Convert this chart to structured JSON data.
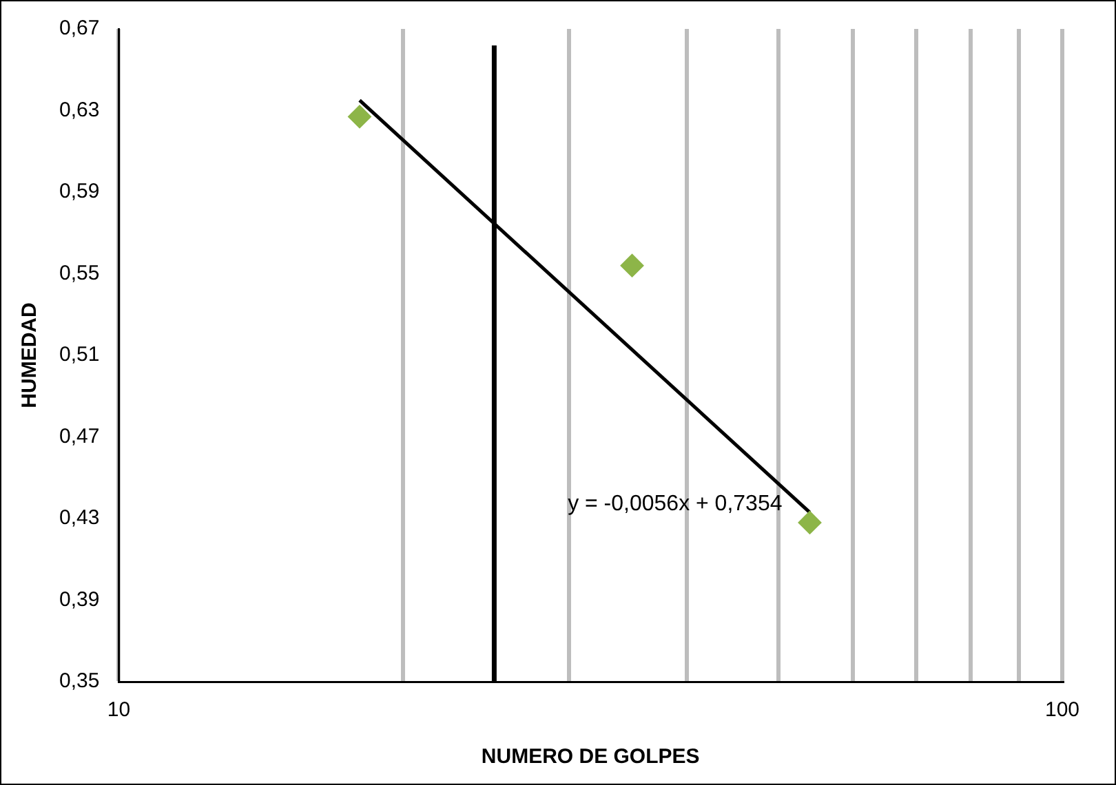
{
  "chart_data": {
    "type": "scatter",
    "xlabel": "NUMERO DE GOLPES",
    "ylabel": "HUMEDAD",
    "log": "x",
    "grid": "x",
    "legend": false,
    "marker": "diamond",
    "xlim": [
      10,
      100
    ],
    "xticks": [
      {
        "value": 10,
        "label": "10"
      },
      {
        "value": 20,
        "label": null
      },
      {
        "value": 30,
        "label": null
      },
      {
        "value": 40,
        "label": null
      },
      {
        "value": 50,
        "label": null
      },
      {
        "value": 60,
        "label": null
      },
      {
        "value": 70,
        "label": null
      },
      {
        "value": 80,
        "label": null
      },
      {
        "value": 90,
        "label": null
      },
      {
        "value": 100,
        "label": "100"
      }
    ],
    "ylim": [
      0.35,
      0.67
    ],
    "yticks": [
      {
        "value": 0.35,
        "label": "0,35"
      },
      {
        "value": 0.39,
        "label": "0,39"
      },
      {
        "value": 0.43,
        "label": "0,43"
      },
      {
        "value": 0.47,
        "label": "0,47"
      },
      {
        "value": 0.51,
        "label": "0,51"
      },
      {
        "value": 0.55,
        "label": "0,55"
      },
      {
        "value": 0.59,
        "label": "0,59"
      },
      {
        "value": 0.63,
        "label": "0,63"
      },
      {
        "value": 0.67,
        "label": "0,67"
      }
    ],
    "series": [
      {
        "color": "#8db548",
        "x": [
          18,
          35,
          54
        ],
        "values": [
          0.627,
          0.554,
          0.428
        ]
      },
      {
        "type": "line",
        "color": "#000000",
        "marker": "none",
        "x": [
          18,
          54
        ],
        "values": [
          0.635,
          0.433
        ]
      }
    ],
    "ref_lines": [
      {
        "axis": "x",
        "value": 25,
        "color": "#000000"
      }
    ],
    "annotations": [
      "y = -0,0056x + 0,7354"
    ]
  }
}
